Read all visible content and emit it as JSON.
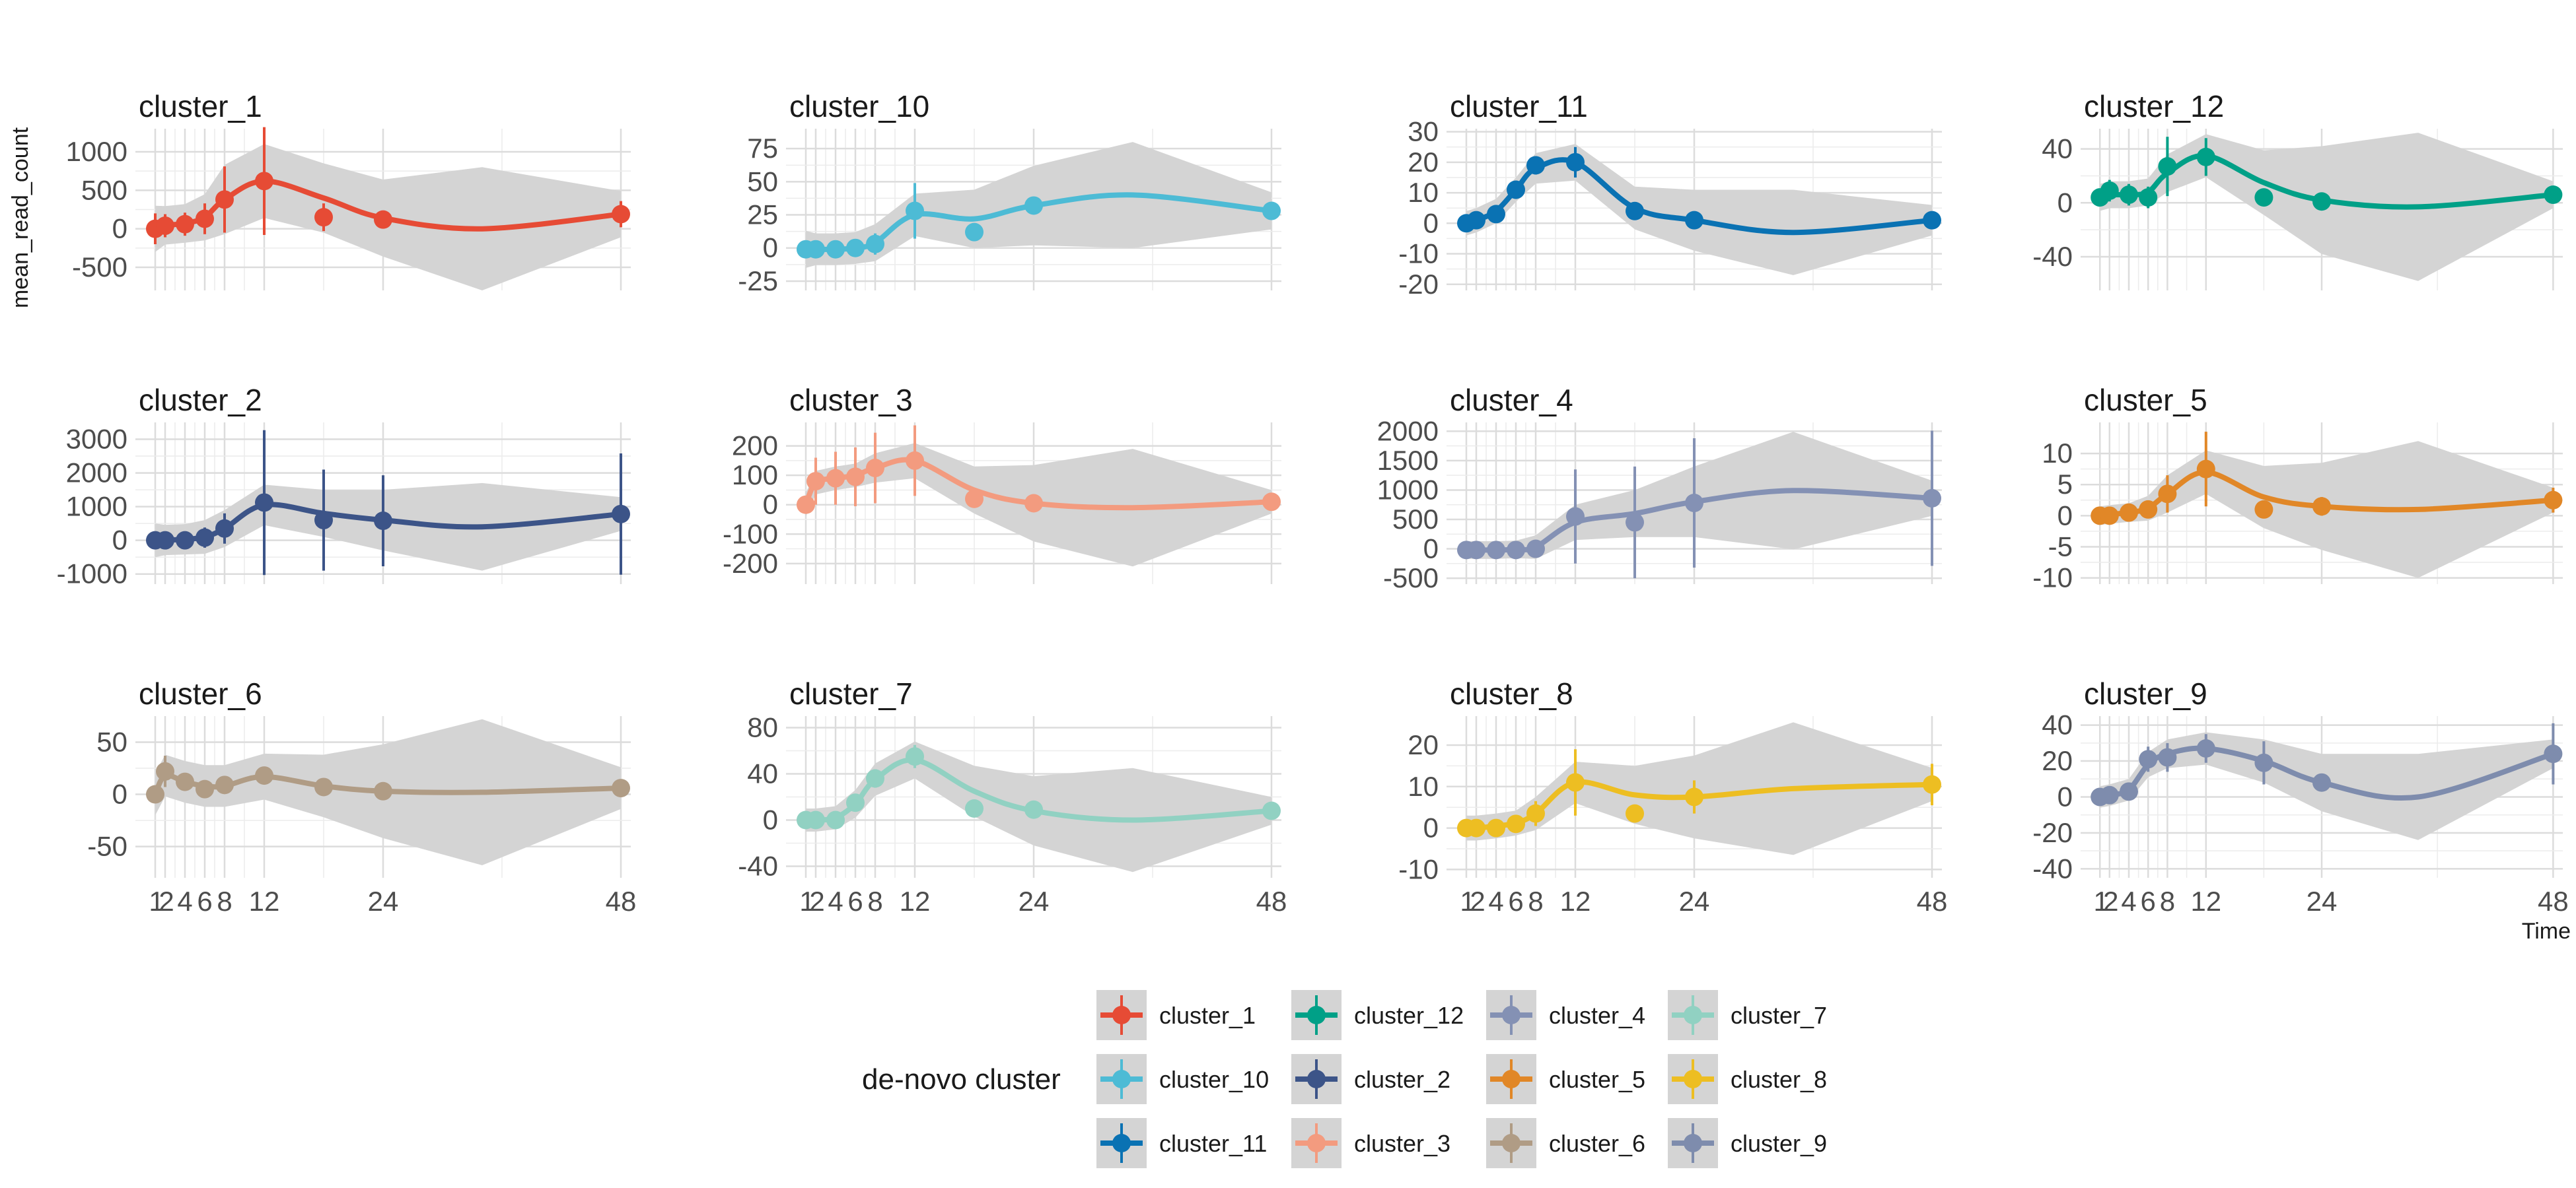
{
  "chart_data": {
    "type": "line",
    "ylabel": "mean_read_count",
    "xlabel": "Time",
    "x_ticks": [
      1,
      2,
      4,
      6,
      8,
      12,
      24,
      48
    ],
    "grid": true,
    "ribbon": "confidence band",
    "legend": {
      "title": "de-novo cluster",
      "placement": "bottom",
      "entries": [
        "cluster_1",
        "cluster_12",
        "cluster_4",
        "cluster_7",
        "cluster_10",
        "cluster_2",
        "cluster_5",
        "cluster_8",
        "cluster_11",
        "cluster_3",
        "cluster_6",
        "cluster_9"
      ]
    },
    "panels": [
      {
        "title": "cluster_1",
        "color": "#E64B35",
        "ylim": [
          -800,
          1300
        ],
        "yticks": [
          -500,
          0,
          500,
          1000
        ],
        "x": [
          1,
          2,
          4,
          6,
          8,
          12,
          18,
          24,
          48
        ],
        "y": [
          0,
          40,
          60,
          130,
          380,
          620,
          150,
          120,
          190
        ],
        "err": [
          200,
          150,
          150,
          200,
          430,
          700,
          180,
          60,
          170
        ],
        "smooth": [
          0,
          45,
          70,
          150,
          380,
          620,
          400,
          140,
          0,
          190
        ],
        "ribbon": [
          300,
          250,
          250,
          300,
          450,
          480,
          450,
          500,
          800,
          300
        ]
      },
      {
        "title": "cluster_10",
        "color": "#4DBBD5",
        "ylim": [
          -32,
          90
        ],
        "yticks": [
          -25,
          0,
          25,
          50,
          75
        ],
        "x": [
          1,
          2,
          4,
          6,
          8,
          12,
          18,
          24,
          48
        ],
        "y": [
          -1,
          -1,
          -1,
          0,
          3,
          28,
          12,
          32,
          28
        ],
        "err": [
          6,
          5,
          5,
          6,
          8,
          21,
          6,
          4,
          6
        ],
        "smooth": [
          -1,
          -1,
          -1,
          0,
          4,
          25,
          22,
          32,
          40,
          28
        ],
        "ribbon": [
          14,
          12,
          12,
          12,
          14,
          16,
          22,
          30,
          40,
          14
        ]
      },
      {
        "title": "cluster_11",
        "color": "#0A72B3",
        "ylim": [
          -22,
          31
        ],
        "yticks": [
          -20,
          -10,
          0,
          10,
          20,
          30
        ],
        "x": [
          1,
          2,
          4,
          6,
          8,
          12,
          18,
          24,
          48
        ],
        "y": [
          0,
          1,
          3,
          11,
          19,
          20,
          4,
          1,
          1
        ],
        "err": [
          2,
          2,
          2,
          3,
          3,
          5,
          2,
          2,
          2
        ],
        "smooth": [
          0,
          1,
          4,
          11,
          18,
          20,
          5,
          1,
          -3,
          1
        ],
        "ribbon": [
          4,
          4,
          4,
          4,
          5,
          6,
          7,
          10,
          14,
          5
        ]
      },
      {
        "title": "cluster_12",
        "color": "#00A087",
        "ylim": [
          -65,
          55
        ],
        "yticks": [
          -40,
          0,
          40
        ],
        "x": [
          1,
          2,
          4,
          6,
          8,
          12,
          18,
          24,
          48
        ],
        "y": [
          4,
          9,
          6,
          4,
          27,
          34,
          4,
          1,
          6
        ],
        "err": [
          6,
          8,
          8,
          8,
          22,
          14,
          6,
          4,
          5
        ],
        "smooth": [
          4,
          6,
          6,
          8,
          22,
          35,
          15,
          2,
          -3,
          6
        ],
        "ribbon": [
          10,
          10,
          10,
          10,
          14,
          16,
          24,
          40,
          55,
          10
        ]
      },
      {
        "title": "cluster_2",
        "color": "#3C5488",
        "ylim": [
          -1300,
          3500
        ],
        "yticks": [
          -1000,
          0,
          1000,
          2000,
          3000
        ],
        "x": [
          1,
          2,
          4,
          6,
          8,
          12,
          18,
          24,
          48
        ],
        "y": [
          0,
          0,
          0,
          80,
          350,
          1120,
          600,
          580,
          780
        ],
        "err": [
          200,
          200,
          200,
          300,
          450,
          2150,
          1500,
          1350,
          1800
        ],
        "smooth": [
          0,
          10,
          30,
          100,
          350,
          1050,
          800,
          600,
          400,
          780
        ],
        "ribbon": [
          500,
          450,
          450,
          500,
          550,
          600,
          700,
          900,
          1300,
          500
        ]
      },
      {
        "title": "cluster_3",
        "color": "#F39B7F",
        "ylim": [
          -270,
          280
        ],
        "yticks": [
          -200,
          -100,
          0,
          100,
          200
        ],
        "x": [
          1,
          2,
          4,
          6,
          8,
          12,
          18,
          24,
          48
        ],
        "y": [
          0,
          80,
          90,
          95,
          125,
          150,
          20,
          5,
          10
        ],
        "err": [
          20,
          80,
          90,
          100,
          120,
          120,
          20,
          10,
          10
        ],
        "smooth": [
          0,
          75,
          90,
          100,
          125,
          150,
          50,
          5,
          -10,
          10
        ],
        "ribbon": [
          40,
          40,
          40,
          40,
          50,
          60,
          80,
          130,
          200,
          40
        ]
      },
      {
        "title": "cluster_4",
        "color": "#8491B4",
        "ylim": [
          -600,
          2150
        ],
        "yticks": [
          -500,
          0,
          500,
          1000,
          1500,
          2000
        ],
        "x": [
          1,
          2,
          4,
          6,
          8,
          12,
          18,
          24,
          48
        ],
        "y": [
          -20,
          -20,
          -20,
          -20,
          0,
          550,
          450,
          780,
          860
        ],
        "err": [
          50,
          50,
          50,
          50,
          100,
          800,
          950,
          1100,
          1150
        ],
        "smooth": [
          -20,
          -20,
          -20,
          -10,
          30,
          450,
          600,
          800,
          990,
          860
        ],
        "ribbon": [
          150,
          150,
          150,
          150,
          200,
          300,
          400,
          600,
          1000,
          300
        ]
      },
      {
        "title": "cluster_5",
        "color": "#E18727",
        "ylim": [
          -11,
          15
        ],
        "yticks": [
          -10,
          -5,
          0,
          5,
          10
        ],
        "x": [
          1,
          2,
          4,
          6,
          8,
          12,
          18,
          24,
          48
        ],
        "y": [
          0,
          0,
          0.5,
          1,
          3.5,
          7.5,
          1,
          1.5,
          2.5
        ],
        "err": [
          1,
          1,
          1,
          1,
          3,
          6,
          1,
          1.5,
          2
        ],
        "smooth": [
          0,
          0.2,
          0.5,
          1.2,
          3.5,
          7,
          3,
          1.5,
          1,
          2.5
        ],
        "ribbon": [
          1.5,
          1.5,
          1.5,
          2,
          3,
          3.5,
          5,
          7,
          11,
          2
        ]
      },
      {
        "title": "cluster_6",
        "color": "#B09C85",
        "ylim": [
          -80,
          75
        ],
        "yticks": [
          -50,
          0,
          50
        ],
        "x": [
          1,
          2,
          4,
          6,
          8,
          12,
          18,
          24,
          48
        ],
        "y": [
          0,
          22,
          12,
          5,
          9,
          18,
          7,
          3,
          6
        ],
        "err": [
          4,
          15,
          8,
          4,
          5,
          6,
          4,
          3,
          3
        ],
        "smooth": [
          0,
          18,
          12,
          8,
          8,
          17,
          8,
          3,
          2,
          6
        ],
        "ribbon": [
          20,
          20,
          20,
          20,
          20,
          22,
          30,
          45,
          70,
          20
        ]
      },
      {
        "title": "cluster_7",
        "color": "#91D1C2",
        "ylim": [
          -50,
          90
        ],
        "yticks": [
          -40,
          0,
          40,
          80
        ],
        "x": [
          1,
          2,
          4,
          6,
          8,
          12,
          18,
          24,
          48
        ],
        "y": [
          0,
          0,
          0,
          15,
          36,
          55,
          10,
          9,
          8
        ],
        "err": [
          4,
          4,
          4,
          6,
          8,
          10,
          5,
          4,
          4
        ],
        "smooth": [
          0,
          0,
          2,
          14,
          35,
          52,
          25,
          8,
          0,
          8
        ],
        "ribbon": [
          10,
          10,
          10,
          12,
          14,
          16,
          22,
          30,
          45,
          12
        ]
      },
      {
        "title": "cluster_8",
        "color": "#EDBE22",
        "ylim": [
          -12,
          27
        ],
        "yticks": [
          -10,
          0,
          10,
          20
        ],
        "x": [
          1,
          2,
          4,
          6,
          8,
          12,
          18,
          24,
          48
        ],
        "y": [
          0,
          0,
          0,
          1,
          3.5,
          11,
          3.5,
          7.5,
          10.5
        ],
        "err": [
          1,
          1,
          1,
          1.5,
          3,
          8,
          2,
          4,
          5
        ],
        "smooth": [
          0,
          0,
          0.5,
          1.2,
          3.5,
          11,
          8,
          7.5,
          9.5,
          10.5
        ],
        "ribbon": [
          3,
          3,
          3,
          3,
          4,
          5,
          7,
          10,
          16,
          4
        ]
      },
      {
        "title": "cluster_9",
        "color": "#7E8CAD",
        "ylim": [
          -45,
          45
        ],
        "yticks": [
          -40,
          -20,
          0,
          20,
          40
        ],
        "x": [
          1,
          2,
          4,
          6,
          8,
          12,
          18,
          24,
          48
        ],
        "y": [
          0,
          1,
          3,
          21,
          22,
          27,
          19,
          8,
          24
        ],
        "err": [
          3,
          4,
          5,
          7,
          8,
          8,
          12,
          4,
          17
        ],
        "smooth": [
          0,
          1,
          4,
          18,
          24,
          27,
          20,
          8,
          0,
          24
        ],
        "ribbon": [
          6,
          6,
          6,
          7,
          8,
          9,
          12,
          16,
          24,
          8
        ]
      }
    ]
  }
}
